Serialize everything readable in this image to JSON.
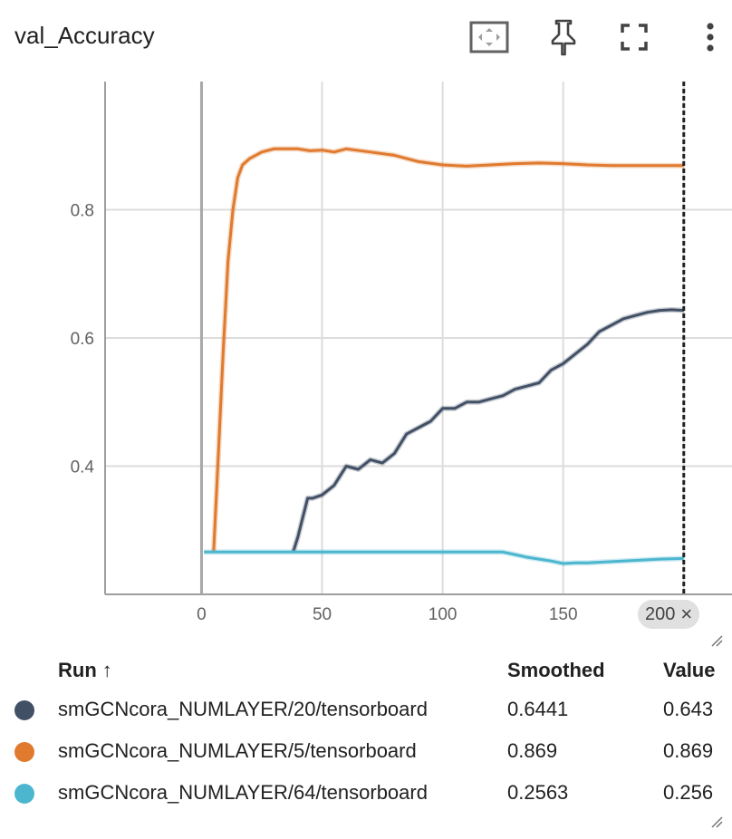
{
  "card": {
    "title": "val_Accuracy",
    "toolbar": {
      "fit_icon": "fit-domain-icon",
      "pin_icon": "pin-icon",
      "fullscreen_icon": "fullscreen-icon",
      "menu_icon": "more-vert-icon"
    }
  },
  "hover": {
    "step_label": "200",
    "close": "×"
  },
  "table": {
    "headers": {
      "run": "Run",
      "sort_arrow": "↑",
      "smoothed": "Smoothed",
      "value": "Value"
    },
    "rows": [
      {
        "color": "#425066",
        "name": "smGCNcora_NUMLAYER/20/tensorboard",
        "smoothed": "0.6441",
        "value": "0.643"
      },
      {
        "color": "#e07a2e",
        "name": "smGCNcora_NUMLAYER/5/tensorboard",
        "smoothed": "0.869",
        "value": "0.869"
      },
      {
        "color": "#4db6cf",
        "name": "smGCNcora_NUMLAYER/64/tensorboard",
        "smoothed": "0.2563",
        "value": "0.256"
      }
    ]
  },
  "chart_data": {
    "type": "line",
    "title": "val_Accuracy",
    "xlim": [
      -40,
      220
    ],
    "ylim": [
      0.2,
      1.0
    ],
    "xticks": [
      0,
      50,
      100,
      150,
      200
    ],
    "yticks": [
      0.4,
      0.6,
      0.8
    ],
    "grid": true,
    "hover_step": 200,
    "series": [
      {
        "name": "smGCNcora_NUMLAYER/5/tensorboard",
        "color": "#e07a2e",
        "x": [
          5,
          7,
          9,
          11,
          13,
          15,
          17,
          20,
          25,
          30,
          35,
          40,
          45,
          50,
          55,
          60,
          70,
          80,
          90,
          100,
          110,
          120,
          130,
          140,
          150,
          160,
          170,
          180,
          190,
          200
        ],
        "y": [
          0.266,
          0.42,
          0.58,
          0.72,
          0.8,
          0.85,
          0.87,
          0.88,
          0.89,
          0.895,
          0.895,
          0.895,
          0.892,
          0.893,
          0.89,
          0.895,
          0.89,
          0.885,
          0.875,
          0.87,
          0.868,
          0.87,
          0.872,
          0.873,
          0.872,
          0.87,
          0.869,
          0.869,
          0.869,
          0.869
        ]
      },
      {
        "name": "smGCNcora_NUMLAYER/20/tensorboard",
        "color": "#425066",
        "x": [
          38,
          40,
          42,
          44,
          46,
          50,
          55,
          60,
          65,
          70,
          75,
          80,
          85,
          90,
          95,
          100,
          105,
          110,
          115,
          120,
          125,
          130,
          135,
          140,
          145,
          150,
          155,
          160,
          165,
          170,
          175,
          180,
          185,
          190,
          195,
          200
        ],
        "y": [
          0.266,
          0.29,
          0.32,
          0.35,
          0.35,
          0.355,
          0.37,
          0.4,
          0.395,
          0.41,
          0.405,
          0.42,
          0.45,
          0.46,
          0.47,
          0.49,
          0.49,
          0.5,
          0.5,
          0.505,
          0.51,
          0.52,
          0.525,
          0.53,
          0.55,
          0.56,
          0.575,
          0.59,
          0.61,
          0.62,
          0.63,
          0.635,
          0.64,
          0.643,
          0.644,
          0.643
        ]
      },
      {
        "name": "smGCNcora_NUMLAYER/64/tensorboard",
        "color": "#4db6cf",
        "x": [
          1,
          20,
          40,
          60,
          80,
          100,
          120,
          125,
          130,
          135,
          140,
          145,
          150,
          155,
          160,
          170,
          180,
          190,
          200
        ],
        "y": [
          0.266,
          0.266,
          0.266,
          0.266,
          0.266,
          0.266,
          0.266,
          0.266,
          0.262,
          0.258,
          0.255,
          0.252,
          0.248,
          0.249,
          0.249,
          0.251,
          0.253,
          0.255,
          0.256
        ]
      }
    ]
  }
}
